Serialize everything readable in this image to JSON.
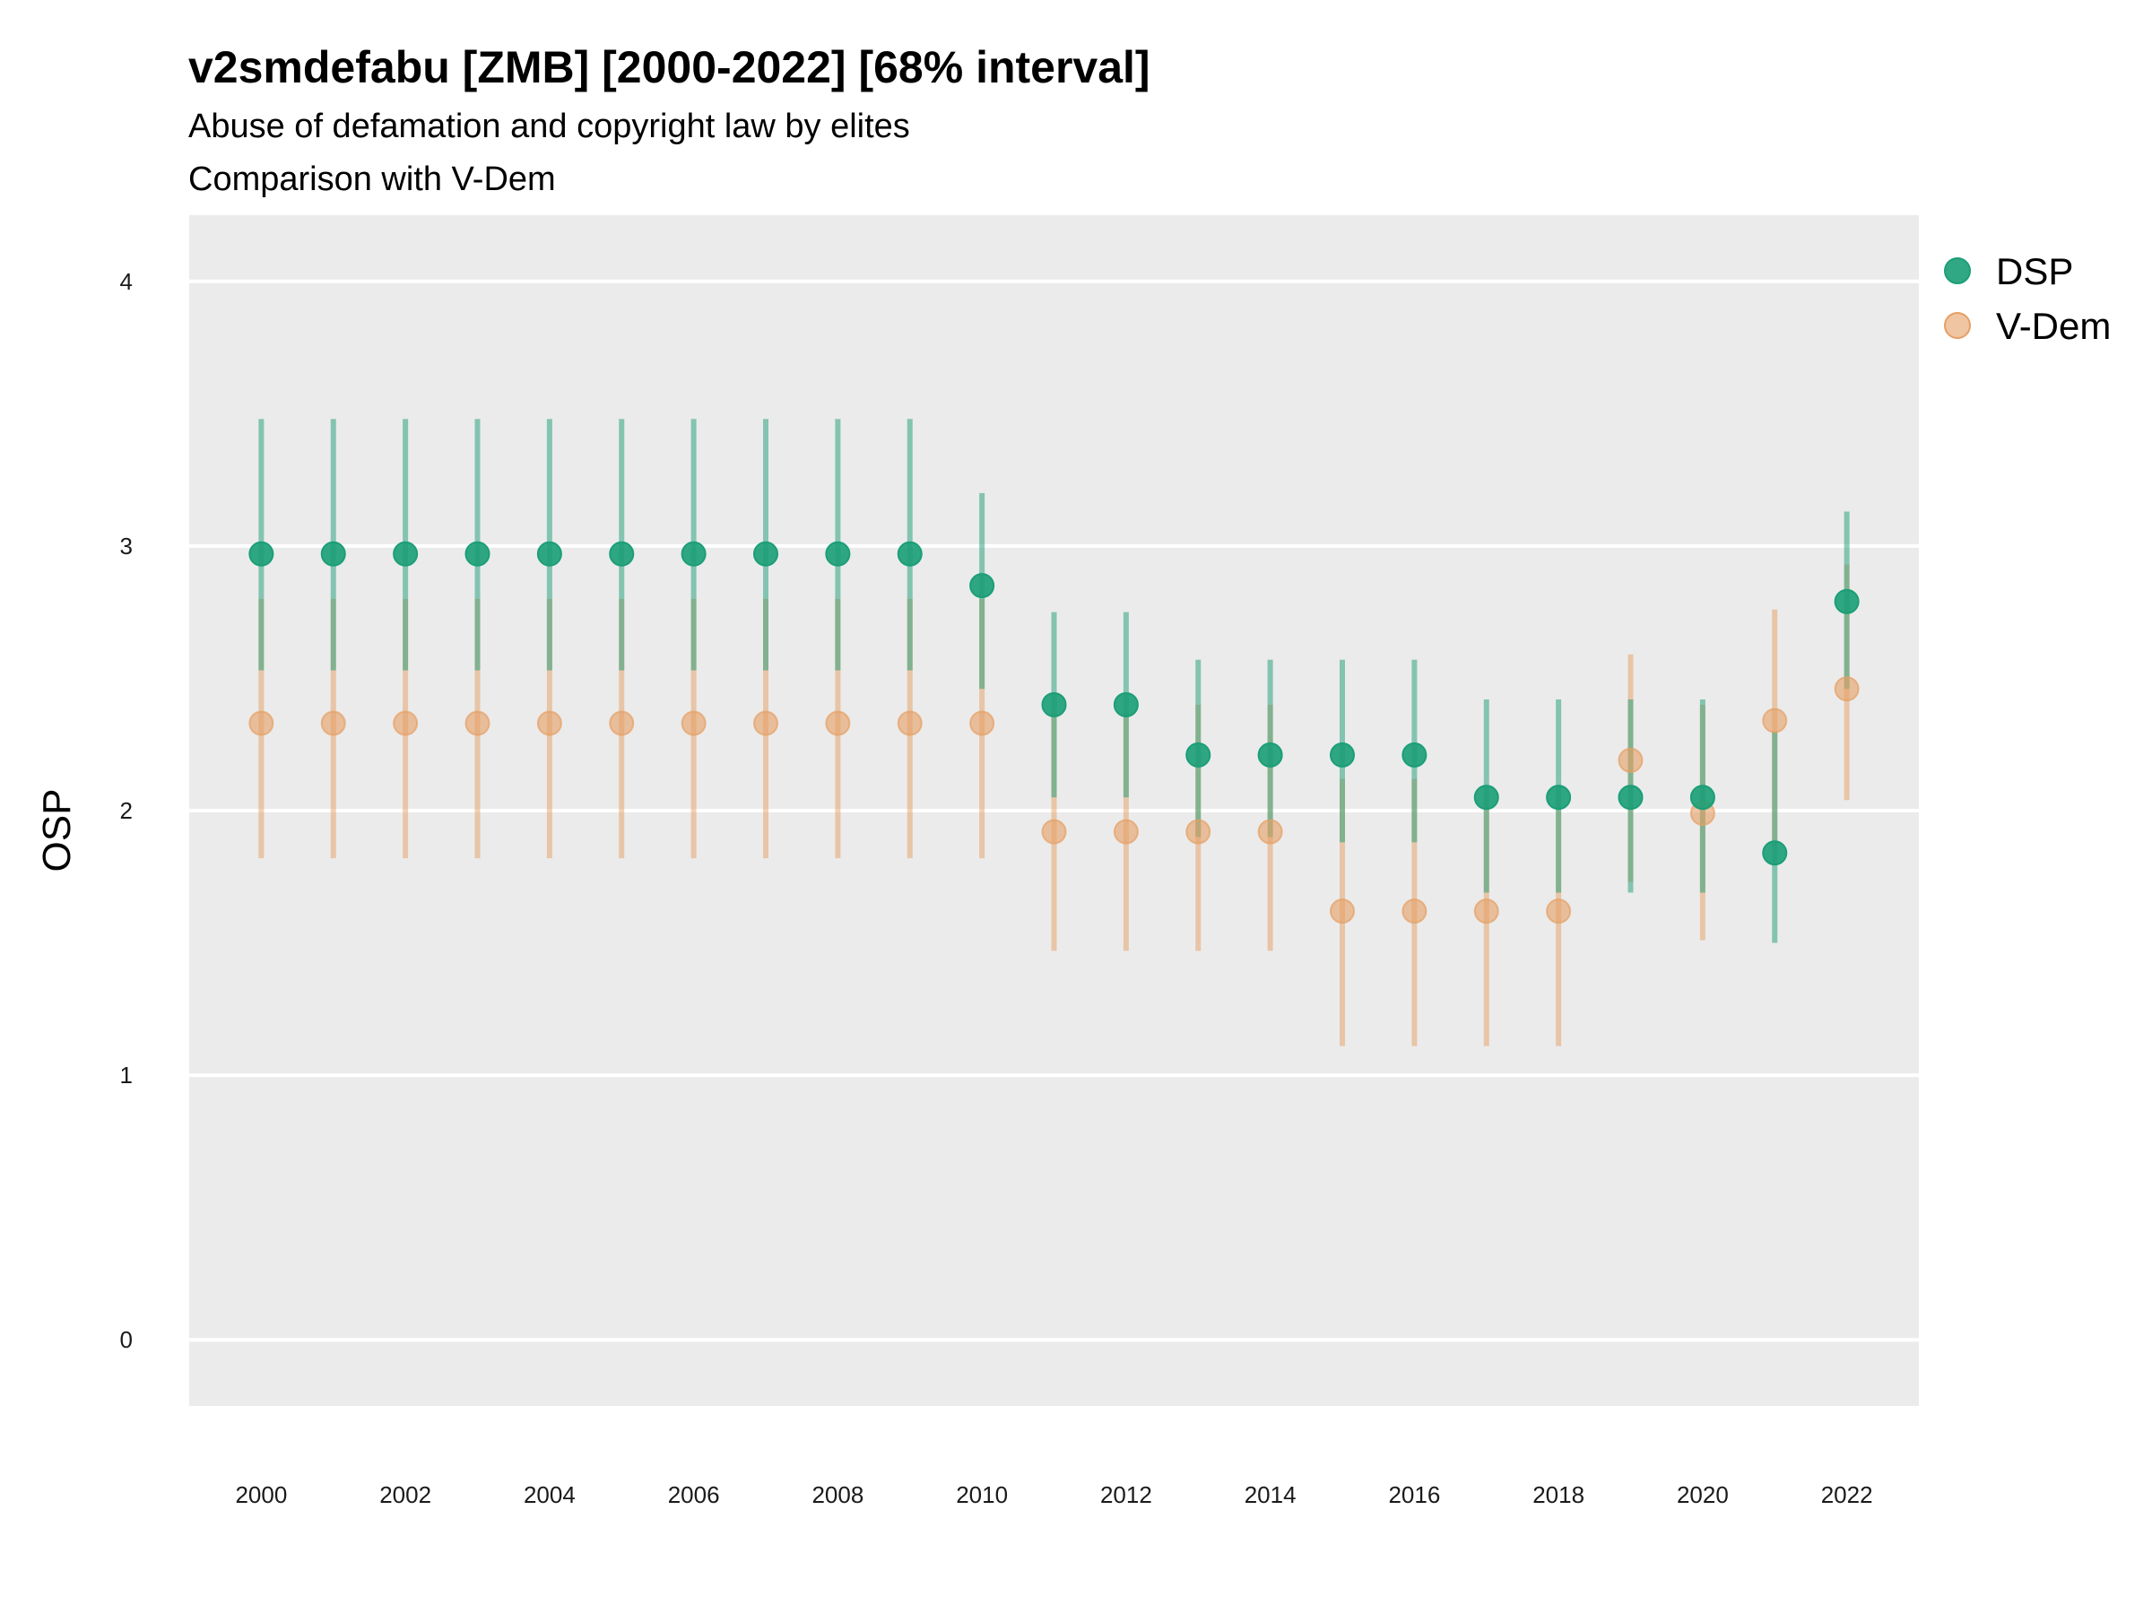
{
  "chart_data": {
    "type": "scatter",
    "title": "v2smdefabu [ZMB] [2000-2022] [68% interval]",
    "subtitle_lines": [
      "Abuse of defamation and copyright law by elites",
      "Comparison with V-Dem"
    ],
    "xlabel": "",
    "ylabel": "OSP",
    "xlim": [
      1999,
      2023
    ],
    "ylim": [
      -0.25,
      4.25
    ],
    "x_ticks": [
      2000,
      2002,
      2004,
      2006,
      2008,
      2010,
      2012,
      2014,
      2016,
      2018,
      2020,
      2022
    ],
    "y_ticks": [
      0,
      1,
      2,
      3,
      4
    ],
    "grid": true,
    "legend_position": "right",
    "x": [
      2000,
      2001,
      2002,
      2003,
      2004,
      2005,
      2006,
      2007,
      2008,
      2009,
      2010,
      2011,
      2012,
      2013,
      2014,
      2015,
      2016,
      2017,
      2018,
      2019,
      2020,
      2021,
      2022
    ],
    "series": [
      {
        "name": "V-Dem",
        "color": "#E69F64",
        "values": [
          2.33,
          2.33,
          2.33,
          2.33,
          2.33,
          2.33,
          2.33,
          2.33,
          2.33,
          2.33,
          2.33,
          1.92,
          1.92,
          1.92,
          1.92,
          1.62,
          1.62,
          1.62,
          1.62,
          2.19,
          1.99,
          2.34,
          2.46
        ],
        "lower": [
          1.82,
          1.82,
          1.82,
          1.82,
          1.82,
          1.82,
          1.82,
          1.82,
          1.82,
          1.82,
          1.82,
          1.47,
          1.47,
          1.47,
          1.47,
          1.11,
          1.11,
          1.11,
          1.11,
          1.73,
          1.51,
          1.87,
          2.04
        ],
        "upper": [
          2.8,
          2.8,
          2.8,
          2.8,
          2.8,
          2.8,
          2.8,
          2.8,
          2.8,
          2.8,
          2.8,
          2.37,
          2.37,
          2.4,
          2.4,
          2.12,
          2.12,
          2.06,
          2.06,
          2.59,
          2.4,
          2.76,
          2.93
        ]
      },
      {
        "name": "DSP",
        "color": "#1B9E77",
        "values": [
          2.97,
          2.97,
          2.97,
          2.97,
          2.97,
          2.97,
          2.97,
          2.97,
          2.97,
          2.97,
          2.85,
          2.4,
          2.4,
          2.21,
          2.21,
          2.21,
          2.21,
          2.05,
          2.05,
          2.05,
          2.05,
          1.84,
          2.79
        ],
        "lower": [
          2.53,
          2.53,
          2.53,
          2.53,
          2.53,
          2.53,
          2.53,
          2.53,
          2.53,
          2.53,
          2.46,
          2.05,
          2.05,
          1.9,
          1.9,
          1.88,
          1.88,
          1.69,
          1.69,
          1.69,
          1.69,
          1.5,
          2.46
        ],
        "upper": [
          3.48,
          3.48,
          3.48,
          3.48,
          3.48,
          3.48,
          3.48,
          3.48,
          3.48,
          3.48,
          3.2,
          2.75,
          2.75,
          2.57,
          2.57,
          2.57,
          2.57,
          2.42,
          2.42,
          2.42,
          2.42,
          2.3,
          3.13
        ]
      }
    ],
    "legend_order": [
      "DSP",
      "V-Dem"
    ]
  }
}
